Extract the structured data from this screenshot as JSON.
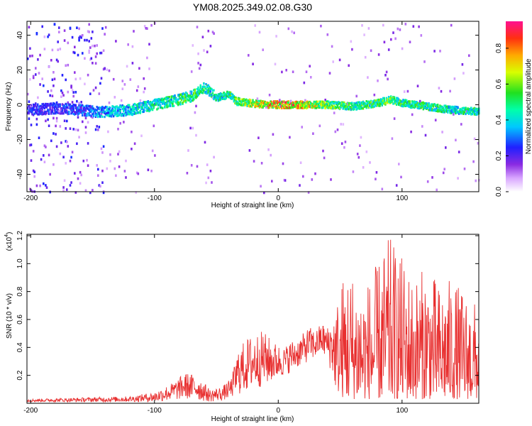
{
  "title": "YM08.2025.349.02.08.G30",
  "colors": {
    "snr_line": "#e83030",
    "frame": "#000000",
    "background": "#ffffff"
  },
  "chart_data": [
    {
      "type": "heatmap",
      "title": "YM08.2025.349.02.08.G30",
      "xlabel": "Height of straight line (km)",
      "ylabel": "Frequency (Hz)",
      "xlim": [
        -203,
        162
      ],
      "ylim": [
        -50,
        48
      ],
      "x_ticks": [
        -200,
        -100,
        0,
        100
      ],
      "x_tick_labels": [
        "-200",
        "-100",
        "0",
        "100"
      ],
      "y_ticks": [
        -40,
        -20,
        0,
        20,
        40
      ],
      "y_tick_labels": [
        "-40",
        "-20",
        "0",
        "20",
        "40"
      ],
      "ridge": {
        "x": [
          -200,
          -180,
          -160,
          -150,
          -140,
          -120,
          -100,
          -80,
          -70,
          -60,
          -55,
          -50,
          -40,
          -35,
          -25,
          -10,
          0,
          20,
          40,
          60,
          80,
          90,
          100,
          120,
          140,
          160
        ],
        "freq": [
          -3,
          -2,
          -3,
          -4,
          -4,
          -3,
          0,
          3,
          5,
          10,
          7,
          4,
          6,
          2,
          1,
          0,
          0,
          0,
          0,
          -1,
          1,
          3,
          1,
          -1,
          -3,
          -4
        ],
        "amplitude": [
          0.3,
          0.3,
          0.35,
          0.4,
          0.45,
          0.5,
          0.55,
          0.6,
          0.65,
          0.6,
          0.55,
          0.55,
          0.6,
          0.65,
          0.75,
          0.9,
          0.95,
          0.9,
          0.7,
          0.6,
          0.65,
          0.7,
          0.6,
          0.6,
          0.55,
          0.6
        ]
      },
      "colorbar": {
        "label": "Normalized spectral amplitude",
        "range": [
          0.0,
          0.95
        ],
        "ticks": [
          0.0,
          0.2,
          0.4,
          0.6,
          0.8
        ],
        "tick_labels": [
          "0.0",
          "0.2",
          "0.4",
          "0.6",
          "0.8"
        ]
      }
    },
    {
      "type": "line",
      "xlabel": "Height of straight line (km)",
      "ylabel": "SNR (10 * v/v)",
      "y_multiplier": "(x10",
      "y_multiplier_exp": "4",
      "y_multiplier_close": ")",
      "xlim": [
        -203,
        162
      ],
      "ylim": [
        0,
        1.21
      ],
      "x_ticks": [
        -200,
        -100,
        0,
        100
      ],
      "x_tick_labels": [
        "-200",
        "-100",
        "0",
        "100"
      ],
      "y_ticks": [
        0.2,
        0.4,
        0.6,
        0.8,
        1.0,
        1.2
      ],
      "y_tick_labels": [
        "0.2",
        "0.4",
        "0.6",
        "0.8",
        "1.0",
        "1.2"
      ],
      "envelope": {
        "x": [
          -203,
          -160,
          -120,
          -100,
          -85,
          -75,
          -65,
          -55,
          -45,
          -38,
          -32,
          -25,
          -20,
          -12,
          -5,
          0,
          5,
          10,
          15,
          20,
          25,
          30,
          35,
          40,
          45,
          50,
          55,
          60,
          70,
          80,
          90,
          100,
          110,
          120,
          130,
          140,
          150,
          162
        ],
        "low": [
          0.01,
          0.01,
          0.01,
          0.01,
          0.02,
          0.03,
          0.02,
          0.01,
          0.02,
          0.04,
          0.06,
          0.08,
          0.1,
          0.12,
          0.15,
          0.18,
          0.2,
          0.22,
          0.25,
          0.28,
          0.3,
          0.32,
          0.35,
          0.3,
          0.15,
          0.05,
          0.03,
          0.03,
          0.03,
          0.03,
          0.03,
          0.03,
          0.03,
          0.03,
          0.03,
          0.03,
          0.03,
          0.03
        ],
        "high": [
          0.03,
          0.04,
          0.05,
          0.08,
          0.15,
          0.22,
          0.2,
          0.1,
          0.12,
          0.18,
          0.4,
          0.47,
          0.5,
          0.52,
          0.45,
          0.42,
          0.4,
          0.45,
          0.46,
          0.5,
          0.55,
          0.52,
          0.58,
          0.55,
          0.65,
          0.85,
          1.0,
          0.95,
          0.85,
          1.0,
          1.2,
          1.05,
          0.9,
          1.0,
          0.85,
          0.9,
          0.8,
          0.7
        ]
      }
    }
  ]
}
